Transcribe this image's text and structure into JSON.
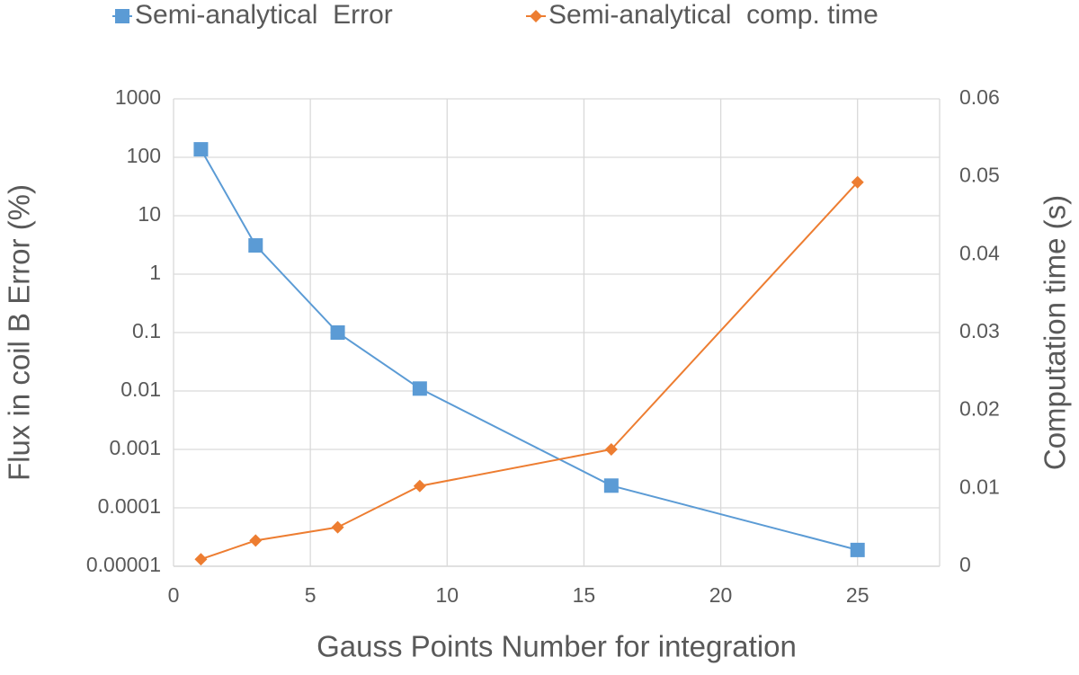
{
  "chart_data": {
    "type": "line",
    "x_label": "Gauss Points Number for integration",
    "y_label": "Flux in coil B Error (%)",
    "y2_label": "Computation time (s)",
    "x": [
      1,
      3,
      6,
      9,
      16,
      25
    ],
    "series": [
      {
        "name": "Semi-analytical  Error",
        "color": "#5b9bd5",
        "marker": "square",
        "values": [
          137,
          3.1,
          0.1,
          0.011,
          0.00024,
          1.9e-05
        ]
      },
      {
        "name": "Semi-analytical  comp. time",
        "color": "#ed7d31",
        "marker": "diamond",
        "axis": "y2",
        "values": [
          0.0009,
          0.0033,
          0.005,
          0.0103,
          0.015,
          0.0493
        ]
      }
    ],
    "xlim": [
      0,
      28
    ],
    "xticks": [
      0,
      5,
      10,
      15,
      20,
      25
    ],
    "ylim": [
      1e-05,
      1000
    ],
    "yticks": [
      1e-05,
      0.0001,
      0.001,
      0.01,
      0.1,
      1,
      10,
      100,
      1000
    ],
    "yscale": "log",
    "y2lim": [
      0,
      0.06
    ],
    "y2ticks": [
      0,
      0.01,
      0.02,
      0.03,
      0.04,
      0.05,
      0.06
    ],
    "grid": true,
    "legend": "top"
  }
}
